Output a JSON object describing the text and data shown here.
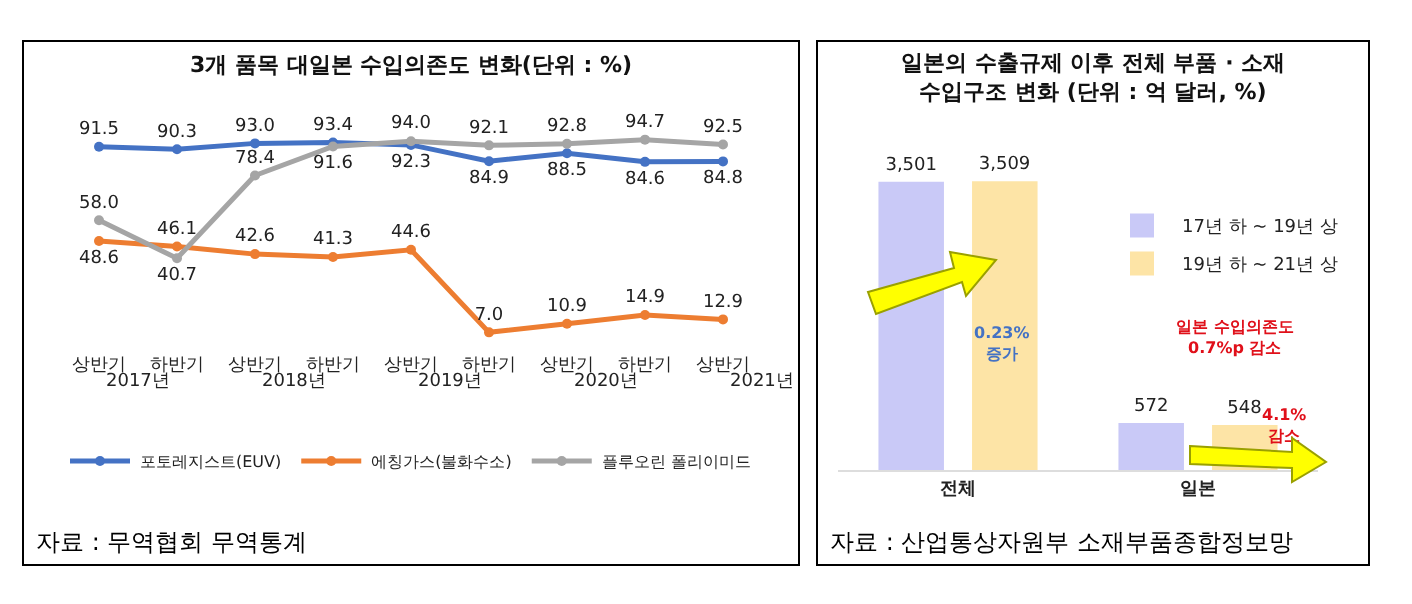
{
  "chart_data": [
    {
      "type": "line",
      "title": "3개 품목 대일본 수입의존도 변화(단위 : %)",
      "categories": [
        "상반기",
        "하반기",
        "상반기",
        "하반기",
        "상반기",
        "하반기",
        "상반기",
        "하반기",
        "상반기"
      ],
      "marker": "circle",
      "legend": "bottom",
      "series": [
        {
          "name": "포토레지스트(EUV)",
          "color": "#4472c4",
          "values": [
            91.5,
            90.3,
            93.0,
            93.4,
            92.3,
            84.9,
            88.5,
            84.6,
            84.8
          ],
          "value_labels": [
            "91.5",
            "90.3",
            "93.0",
            "93.4",
            "92.3",
            "84.9",
            "88.5",
            "84.6",
            "84.8"
          ]
        },
        {
          "name": "에칭가스(불화수소)",
          "color": "#ed7d31",
          "values": [
            48.6,
            46.1,
            42.6,
            41.3,
            44.6,
            7.0,
            10.9,
            14.9,
            12.9
          ],
          "value_labels": [
            "48.6",
            "46.1",
            "42.6",
            "41.3",
            "44.6",
            "7.0",
            "10.9",
            "14.9",
            "12.9"
          ]
        },
        {
          "name": "플루오린 폴리이미드",
          "color": "#a5a5a5",
          "values": [
            58.0,
            40.7,
            78.4,
            91.6,
            94.0,
            92.1,
            92.8,
            94.7,
            92.5
          ],
          "value_labels": [
            "58.0",
            "40.7",
            "78.4",
            "91.6",
            "94.0",
            "92.1",
            "92.8",
            "94.7",
            "92.5"
          ]
        }
      ],
      "annotations": [
        "2017년",
        "2018년",
        "2019년",
        "2020년",
        "2021년",
        "자료 : 무역협회 무역통계"
      ]
    },
    {
      "type": "bar",
      "title": "일본의 수출규제 이후 전체 부품 · 소재\n수입구조 변화 (단위 : 억 달러, %)",
      "categories": [
        "전체",
        "일본"
      ],
      "legend": "top right",
      "series": [
        {
          "name": "17년 하 ~ 19년 상",
          "color": "#c9c9f7",
          "values": [
            3501,
            572
          ],
          "value_labels": [
            "3,501",
            "572"
          ]
        },
        {
          "name": "19년 하 ~ 21년 상",
          "color": "#fde4a6",
          "values": [
            3509,
            548
          ],
          "value_labels": [
            "3,509",
            "548"
          ]
        }
      ],
      "annotations": [
        "0.23%\n증가",
        "일본 수입의존도\n0.7%p 감소",
        "4.1%\n감소",
        "자료 : 산업통상자원부  소재부품종합정보망"
      ]
    }
  ]
}
